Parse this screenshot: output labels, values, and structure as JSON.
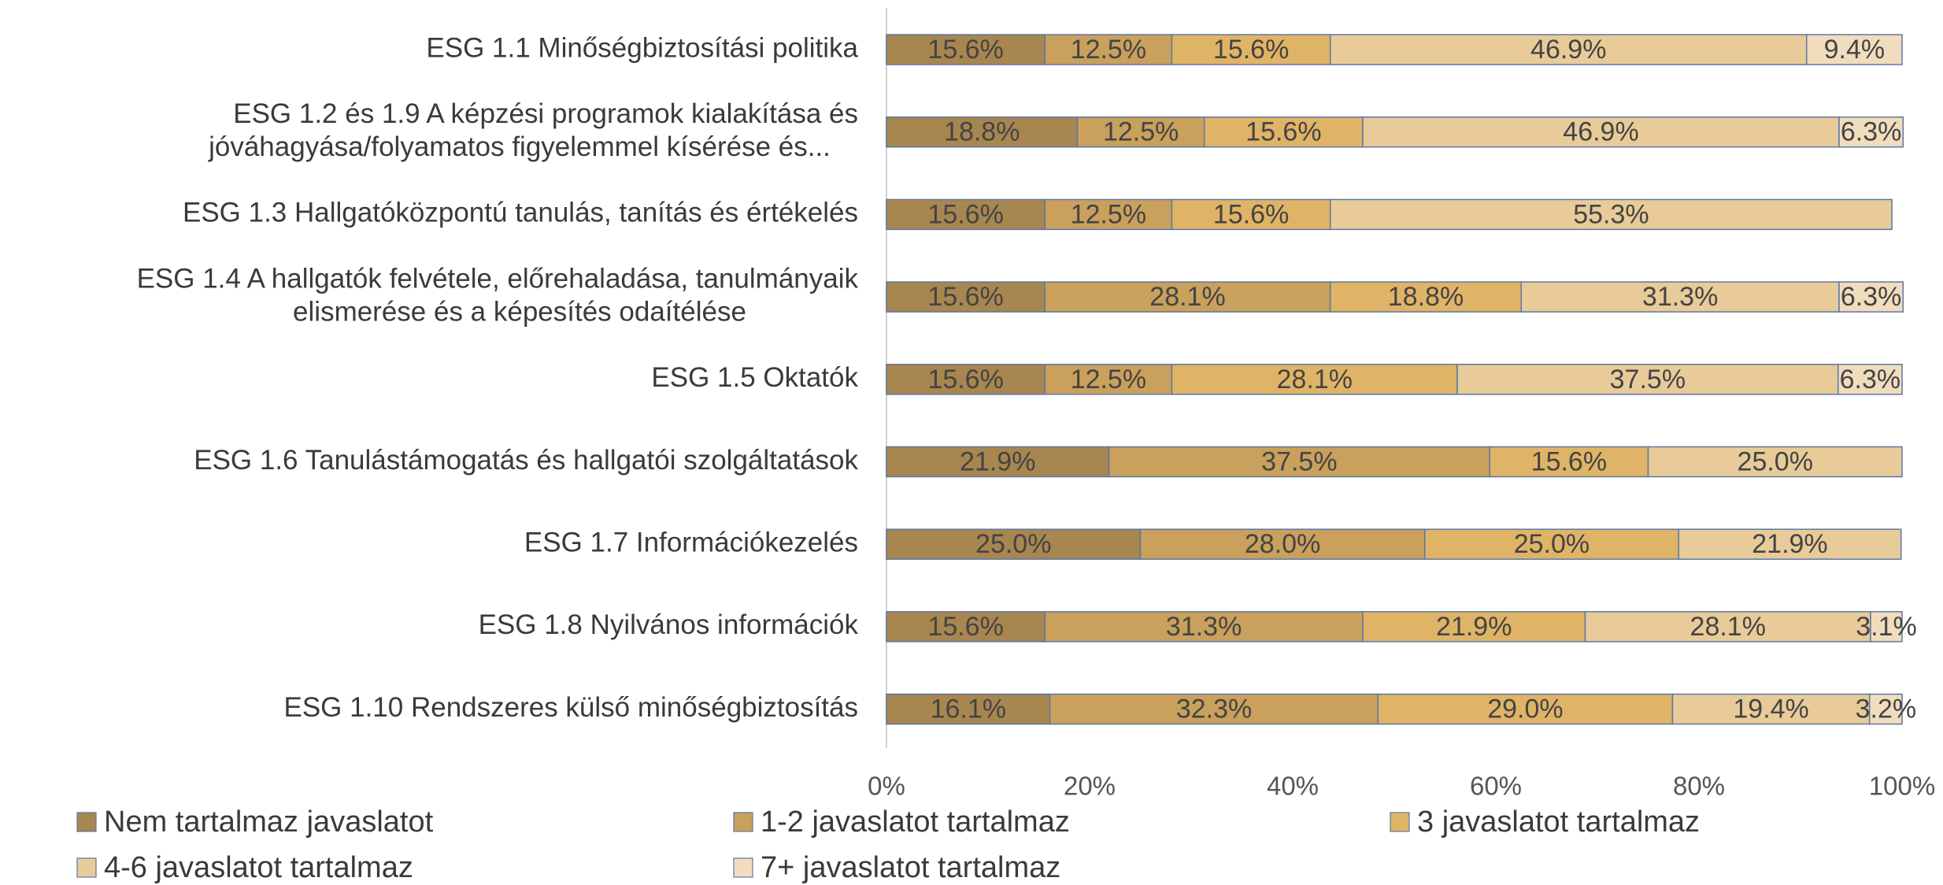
{
  "chart_data": {
    "type": "stacked_barh",
    "categories": [
      [
        "ESG 1.1 Minőségbiztosítási politika"
      ],
      [
        "ESG 1.2 és 1.9 A képzési programok kialakítása és",
        "jóváhagyása/folyamatos figyelemmel kísérése és..."
      ],
      [
        "ESG 1.3 Hallgatóközpontú tanulás, tanítás és értékelés"
      ],
      [
        "ESG 1.4 A hallgatók felvétele, előrehaladása, tanulmányaik",
        "elismerése és a képesítés odaítélése"
      ],
      [
        "ESG 1.5 Oktatók"
      ],
      [
        "ESG 1.6 Tanulástámogatás és hallgatói szolgáltatások"
      ],
      [
        "ESG 1.7 Információkezelés"
      ],
      [
        "ESG 1.8 Nyilvános információk"
      ],
      [
        "ESG 1.10 Rendszeres külső minőségbiztosítás"
      ]
    ],
    "series": [
      {
        "name": "Nem tartalmaz javaslatot",
        "color": "#a8864f",
        "values": [
          15.6,
          18.8,
          15.6,
          15.6,
          15.6,
          21.9,
          25.0,
          15.6,
          16.1
        ],
        "value_labels": [
          "15.6%",
          "18.8%",
          "15.6%",
          "15.6%",
          "15.6%",
          "21.9%",
          "25.0%",
          "15.6%",
          "16.1%"
        ]
      },
      {
        "name": "1-2 javaslatot tartalmaz",
        "color": "#c9a05c",
        "values": [
          12.5,
          12.5,
          12.5,
          28.1,
          12.5,
          37.5,
          28.0,
          31.3,
          32.3
        ],
        "value_labels": [
          "12.5%",
          "12.5%",
          "12.5%",
          "28.1%",
          "12.5%",
          "37.5%",
          "28.0%",
          "31.3%",
          "32.3%"
        ]
      },
      {
        "name": "3 javaslatot tartalmaz",
        "color": "#e0b466",
        "values": [
          15.6,
          15.6,
          15.6,
          18.8,
          28.1,
          15.6,
          25.0,
          21.9,
          29.0
        ],
        "value_labels": [
          "15.6%",
          "15.6%",
          "15.6%",
          "18.8%",
          "28.1%",
          "15.6%",
          "25.0%",
          "21.9%",
          "29.0%"
        ]
      },
      {
        "name": "4-6 javaslatot tartalmaz",
        "color": "#e8cb98",
        "values": [
          46.9,
          46.9,
          55.3,
          31.3,
          37.5,
          25.0,
          21.9,
          28.1,
          19.4
        ],
        "value_labels": [
          "46.9%",
          "46.9%",
          "55.3%",
          "31.3%",
          "37.5%",
          "25.0%",
          "21.9%",
          "28.1%",
          "19.4%"
        ]
      },
      {
        "name": "7+ javaslatot tartalmaz",
        "color": "#f1ddbd",
        "values": [
          9.4,
          6.3,
          null,
          6.3,
          6.3,
          null,
          null,
          3.1,
          3.2
        ],
        "value_labels": [
          "9.4%",
          "6.3%",
          null,
          "6.3%",
          "6.3%",
          null,
          null,
          "3.1%",
          "3.2%"
        ]
      }
    ],
    "xlim": [
      0,
      100
    ],
    "xticks": [
      {
        "value": 0,
        "label": "0%"
      },
      {
        "value": 20,
        "label": "20%"
      },
      {
        "value": 40,
        "label": "40%"
      },
      {
        "value": 60,
        "label": "60%"
      },
      {
        "value": 80,
        "label": "80%"
      },
      {
        "value": 100,
        "label": "100%"
      }
    ],
    "legend": "bottom"
  }
}
